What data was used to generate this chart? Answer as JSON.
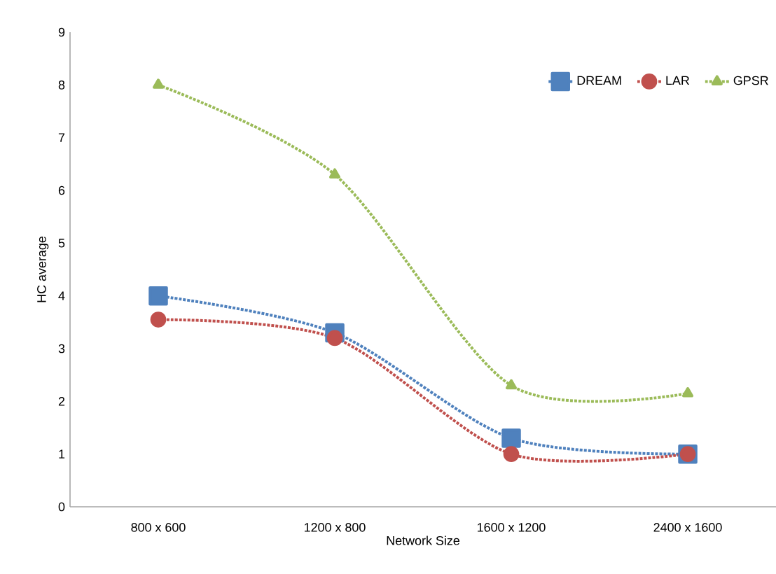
{
  "chart_data": {
    "type": "line",
    "xlabel": "Network Size",
    "ylabel": "HC average",
    "categories": [
      "800 x 600",
      "1200 x 800",
      "1600 x 1200",
      "2400 x 1600"
    ],
    "series": [
      {
        "name": "DREAM",
        "color": "#4f81bd",
        "marker": "square",
        "values": [
          4.0,
          3.3,
          1.3,
          1.0
        ]
      },
      {
        "name": "LAR",
        "color": "#c0504d",
        "marker": "circle",
        "values": [
          3.55,
          3.2,
          1.0,
          1.0
        ]
      },
      {
        "name": "GPSR",
        "color": "#9bbb59",
        "marker": "triangle",
        "values": [
          8.0,
          6.3,
          2.3,
          2.15
        ]
      }
    ],
    "ylim": [
      0,
      9
    ],
    "yticks": [
      0,
      1,
      2,
      3,
      4,
      5,
      6,
      7,
      8,
      9
    ],
    "legend": "top right",
    "line_style": "dotted",
    "grid": false
  }
}
